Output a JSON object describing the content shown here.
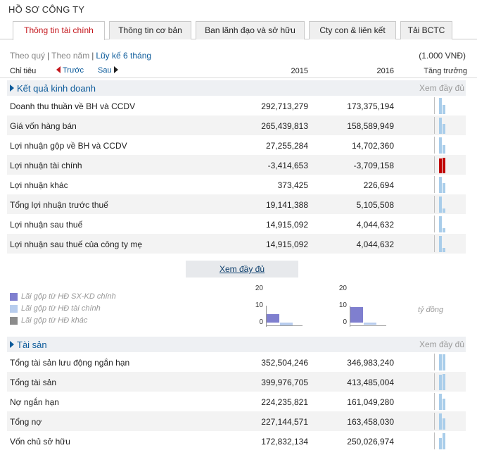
{
  "page_title": "HỒ SƠ CÔNG TY",
  "tabs": [
    {
      "label": "Thông tin tài chính",
      "active": true
    },
    {
      "label": "Thông tin cơ bản",
      "active": false
    },
    {
      "label": "Ban lãnh đạo và sở hữu",
      "active": false
    },
    {
      "label": "Cty con & liên kết",
      "active": false
    },
    {
      "label": "Tải BCTC",
      "active": false
    }
  ],
  "period_options": {
    "quarter": "Theo quý",
    "year": "Theo năm",
    "ytd": "Lũy kế 6 tháng"
  },
  "unit": "(1.000 VNĐ)",
  "header": {
    "label": "Chỉ tiêu",
    "prev": "Trước",
    "next": "Sau",
    "year1": "2015",
    "year2": "2016",
    "growth": "Tăng trưởng"
  },
  "sections": {
    "kqkd": {
      "title": "Kết quả kinh doanh",
      "more": "Xem đầy đủ",
      "rows": [
        {
          "label": "Doanh thu thuần về BH và CCDV",
          "v2015": "292,713,279",
          "v2016": "173,375,194",
          "spark": [
            0.95,
            0.56
          ]
        },
        {
          "label": "Giá vốn hàng bán",
          "v2015": "265,439,813",
          "v2016": "158,589,949",
          "spark": [
            0.95,
            0.57
          ]
        },
        {
          "label": "Lợi nhuận gộp về BH và CCDV",
          "v2015": "27,255,284",
          "v2016": "14,702,360",
          "spark": [
            0.95,
            0.52
          ]
        },
        {
          "label": "Lợi nhuận tài chính",
          "v2015": "-3,414,653",
          "v2016": "-3,709,158",
          "spark": [
            0.86,
            0.93
          ],
          "negative": true
        },
        {
          "label": "Lợi nhuận khác",
          "v2015": "373,425",
          "v2016": "226,694",
          "spark": [
            0.95,
            0.6
          ]
        },
        {
          "label": "Tổng lợi nhuận trước thuế",
          "v2015": "19,141,388",
          "v2016": "5,105,508",
          "spark": [
            0.95,
            0.27
          ]
        },
        {
          "label": "Lợi nhuận sau thuế",
          "v2015": "14,915,092",
          "v2016": "4,044,632",
          "spark": [
            0.95,
            0.27
          ]
        },
        {
          "label": "Lợi nhuận sau thuế của công ty mẹ",
          "v2015": "14,915,092",
          "v2016": "4,044,632",
          "spark": [
            0.95,
            0.27
          ]
        }
      ]
    },
    "taisan": {
      "title": "Tài sản",
      "more": "Xem đầy đủ",
      "rows": [
        {
          "label": "Tổng tài sản lưu động ngắn hạn",
          "v2015": "352,504,246",
          "v2016": "346,983,240",
          "spark": [
            0.95,
            0.94
          ]
        },
        {
          "label": "Tổng tài sản",
          "v2015": "399,976,705",
          "v2016": "413,485,004",
          "spark": [
            0.92,
            0.95
          ]
        },
        {
          "label": "Nợ ngắn hạn",
          "v2015": "224,235,821",
          "v2016": "161,049,280",
          "spark": [
            0.95,
            0.68
          ]
        },
        {
          "label": "Tổng nợ",
          "v2015": "227,144,571",
          "v2016": "163,458,030",
          "spark": [
            0.95,
            0.68
          ]
        },
        {
          "label": "Vốn chủ sở hữu",
          "v2015": "172,832,134",
          "v2016": "250,026,974",
          "spark": [
            0.66,
            0.95
          ]
        }
      ]
    }
  },
  "view_all": "Xem đầy đủ",
  "legend": [
    {
      "label": "Lãi gộp từ HĐ SX-KD chính",
      "color": "#7f7fcf"
    },
    {
      "label": "Lãi gộp từ HĐ tài chính",
      "color": "#b8cdee"
    },
    {
      "label": "Lãi gộp từ HĐ khác",
      "color": "#8c8c8c"
    }
  ],
  "unit_note": "tỷ đồng",
  "chart_data": [
    {
      "type": "bar",
      "categories": [
        "Lãi gộp từ HĐ SX-KD chính",
        "Lãi gộp từ HĐ tài chính"
      ],
      "values": [
        5,
        -1.5
      ],
      "ylim": [
        0,
        20
      ],
      "yticks": [
        "20",
        "10",
        "0"
      ],
      "title": ""
    },
    {
      "type": "bar",
      "categories": [
        "Lãi gộp từ HĐ SX-KD chính",
        "Lãi gộp từ HĐ tài chính"
      ],
      "values": [
        9,
        -1.3
      ],
      "ylim": [
        0,
        20
      ],
      "yticks": [
        "20",
        "10",
        "0"
      ],
      "title": ""
    }
  ],
  "colors": {
    "accent_red": "#c4161c",
    "link_blue": "#0b5a9a",
    "spark_blue": "#a9cdea",
    "negative_red": "#c00000"
  }
}
